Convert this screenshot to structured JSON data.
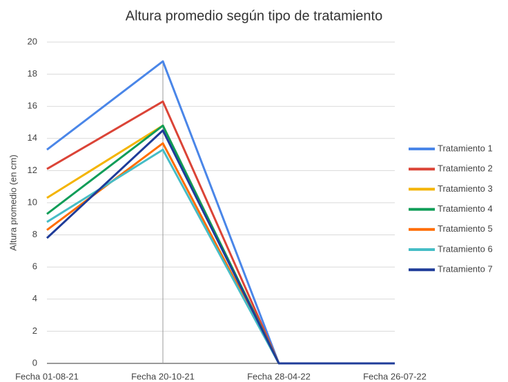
{
  "chart_data": {
    "type": "line",
    "title": "Altura promedio según tipo de tratamiento",
    "y_label": "Altura promedio (en cm)",
    "categories": [
      "Fecha 01-08-21",
      "Fecha 20-10-21",
      "Fecha 28-04-22",
      "Fecha 26-07-22"
    ],
    "series": [
      {
        "name": "Tratamiento 1",
        "color": "#4a86e8",
        "values": [
          13.3,
          18.8,
          0,
          0
        ]
      },
      {
        "name": "Tratamiento 2",
        "color": "#db4437",
        "values": [
          12.1,
          16.3,
          0,
          0
        ]
      },
      {
        "name": "Tratamiento 3",
        "color": "#f4b400",
        "values": [
          10.3,
          14.8,
          0,
          0
        ]
      },
      {
        "name": "Tratamiento 4",
        "color": "#0f9d58",
        "values": [
          9.3,
          14.8,
          0,
          0
        ]
      },
      {
        "name": "Tratamiento 5",
        "color": "#ff6d00",
        "values": [
          8.3,
          13.7,
          0,
          0
        ]
      },
      {
        "name": "Tratamiento 6",
        "color": "#46bdc6",
        "values": [
          8.8,
          13.3,
          0,
          0
        ]
      },
      {
        "name": "Tratamiento 7",
        "color": "#1f3c99",
        "values": [
          7.8,
          14.5,
          0,
          0
        ]
      }
    ],
    "ylim": [
      0,
      20
    ],
    "yticks": [
      0,
      2,
      4,
      6,
      8,
      10,
      12,
      14,
      16,
      18,
      20
    ],
    "grid": true,
    "legend": "right"
  }
}
